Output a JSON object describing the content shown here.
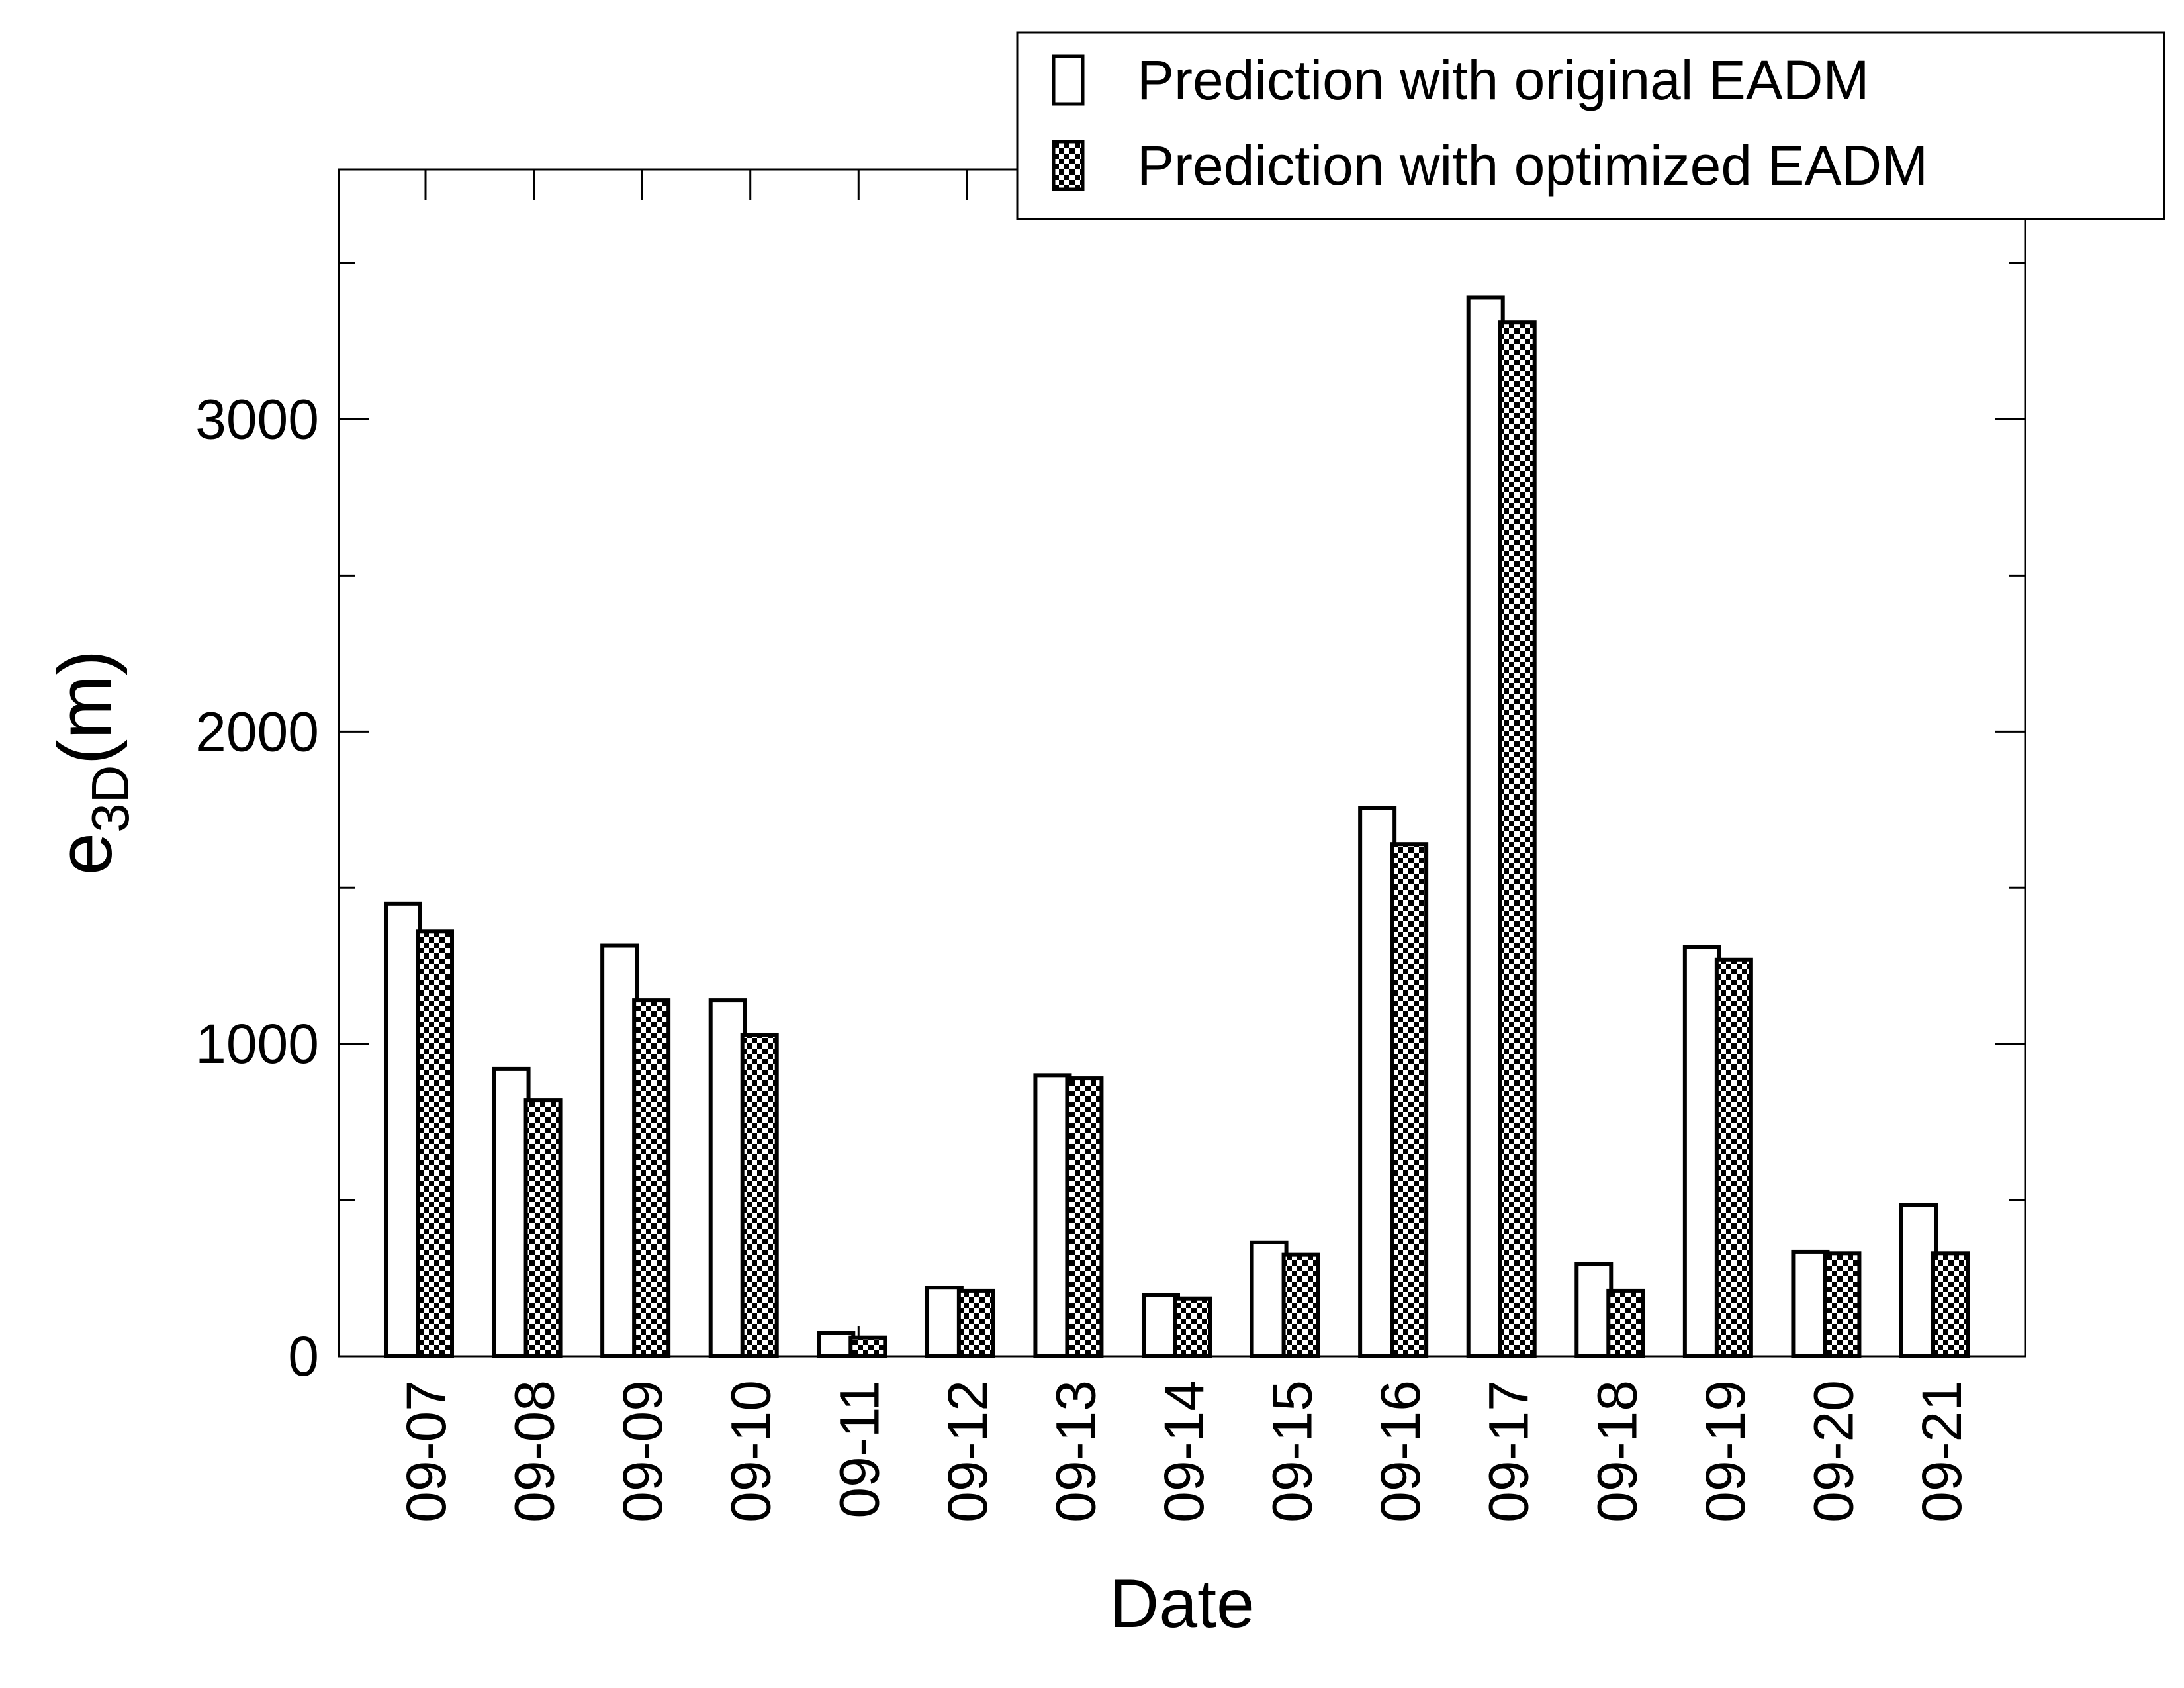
{
  "chart_data": {
    "type": "bar",
    "xlabel": "Date",
    "ylabel": {
      "main": "e",
      "subscript": "3D",
      "suffix": "(m)"
    },
    "ylim": [
      0,
      3800
    ],
    "yticks": [
      0,
      1000,
      2000,
      3000
    ],
    "y_minor_ticks": [
      500,
      1500,
      2500,
      3500
    ],
    "categories": [
      "09-07",
      "09-08",
      "09-09",
      "09-10",
      "09-11",
      "09-12",
      "09-13",
      "09-14",
      "09-15",
      "09-16",
      "09-17",
      "09-18",
      "09-19",
      "09-20",
      "09-21"
    ],
    "series": [
      {
        "name": "Prediction with original EADM",
        "fill": "white",
        "values": [
          1450,
          920,
          1315,
          1140,
          75,
          220,
          900,
          195,
          365,
          1755,
          3390,
          295,
          1310,
          335,
          485
        ]
      },
      {
        "name": "Prediction with optimized EADM",
        "fill": "checkerboard",
        "values": [
          1360,
          820,
          1140,
          1030,
          60,
          210,
          890,
          185,
          325,
          1640,
          3310,
          210,
          1270,
          330,
          330
        ]
      }
    ],
    "legend_position": "top-right",
    "grid": false,
    "colors": {
      "stroke": "#000000",
      "background": "#ffffff"
    }
  }
}
